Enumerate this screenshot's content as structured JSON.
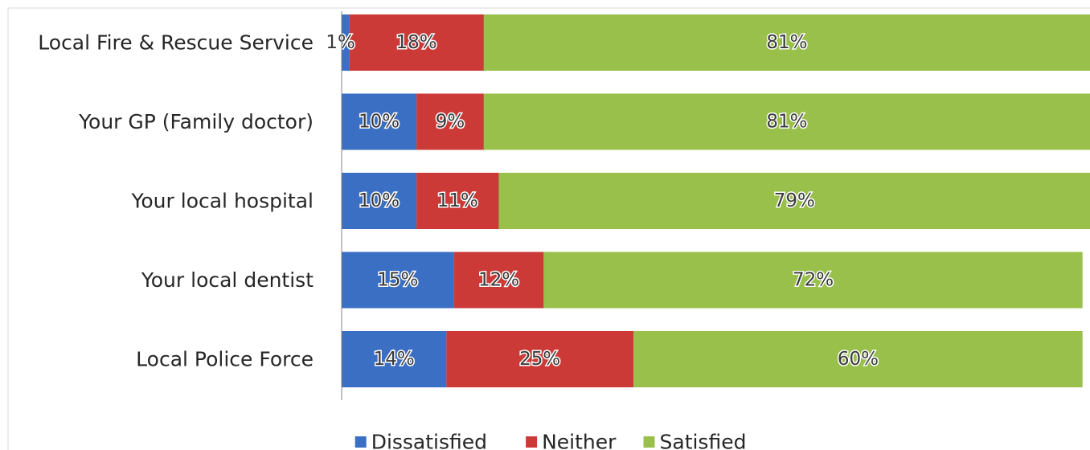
{
  "chart_data": {
    "type": "bar",
    "orientation": "horizontal",
    "stacked": true,
    "title": "",
    "xlabel": "",
    "ylabel": "",
    "xlim": [
      0,
      100
    ],
    "grid": false,
    "legend_position": "bottom",
    "categories": [
      "Local Fire & Rescue Service",
      "Your GP (Family doctor)",
      "Your local hospital",
      "Your local dentist",
      "Local Police Force"
    ],
    "series": [
      {
        "name": "Dissatisfied",
        "color": "#3a6fc4",
        "values": [
          1,
          10,
          10,
          15,
          14
        ],
        "labels": [
          "1%",
          "10%",
          "10%",
          "15%",
          "14%"
        ]
      },
      {
        "name": "Neither",
        "color": "#cc3a38",
        "values": [
          18,
          9,
          11,
          12,
          25
        ],
        "labels": [
          "18%",
          "9%",
          "11%",
          "12%",
          "25%"
        ]
      },
      {
        "name": "Satisfied",
        "color": "#98c04a",
        "values": [
          81,
          81,
          79,
          72,
          60
        ],
        "labels": [
          "81%",
          "81%",
          "79%",
          "72%",
          "60%"
        ]
      }
    ]
  }
}
